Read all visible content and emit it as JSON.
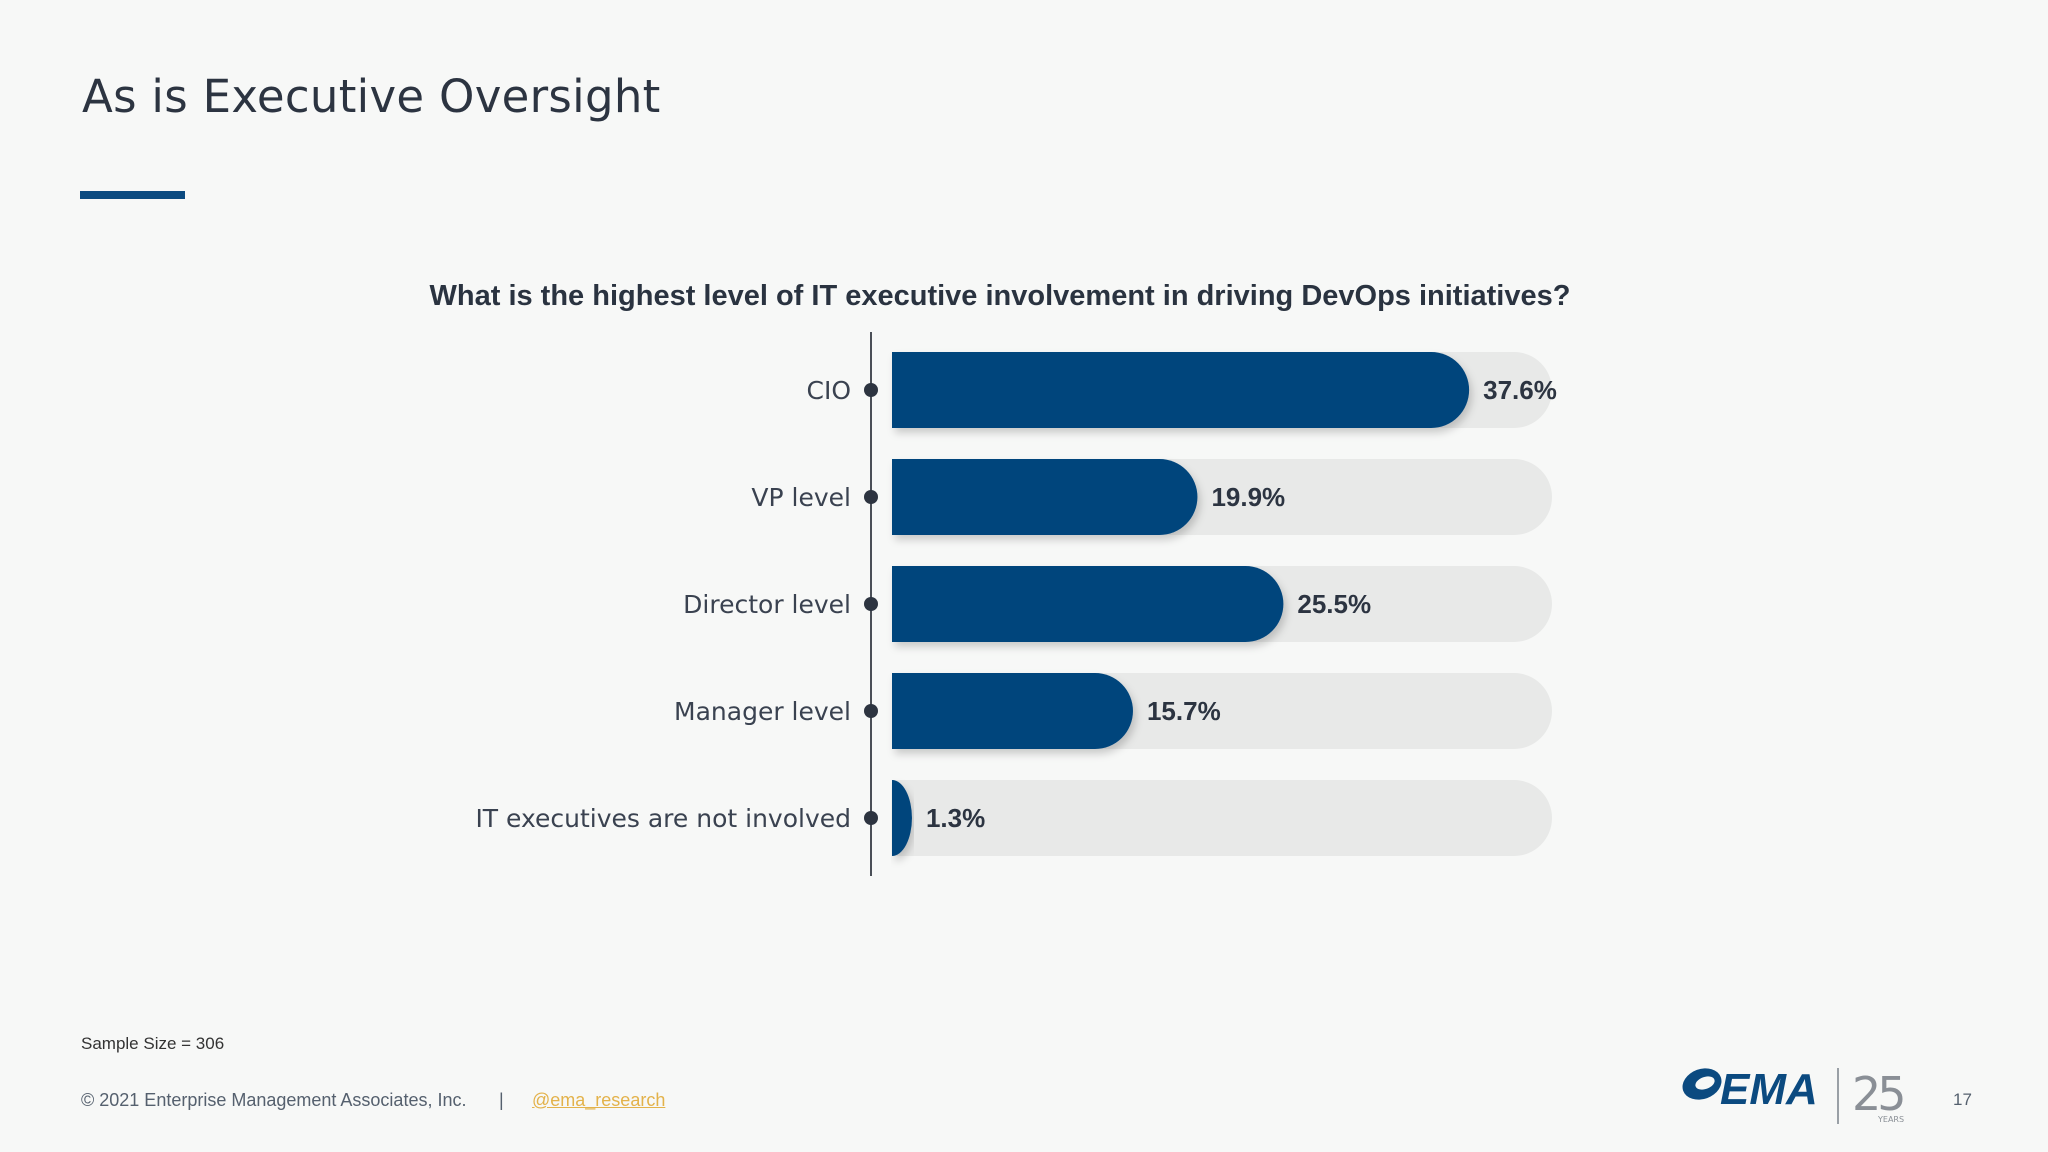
{
  "slide": {
    "title": "As is Executive Oversight",
    "page_number": "17"
  },
  "chart_data": {
    "type": "bar",
    "orientation": "horizontal",
    "title": "What is the highest level of IT executive involvement in driving DevOps initiatives?",
    "categories": [
      "CIO",
      "VP level",
      "Director level",
      "Manager level",
      "IT executives are not involved"
    ],
    "values": [
      37.6,
      19.9,
      25.5,
      15.7,
      1.3
    ],
    "value_labels": [
      "37.6%",
      "19.9%",
      "25.5%",
      "15.7%",
      "1.3%"
    ],
    "unit": "%",
    "xlim": [
      0,
      43
    ],
    "colors": {
      "bar": "#00457c",
      "track": "#e8e9e8",
      "axis": "#4a4f57",
      "dot": "#2d3440"
    },
    "grid": false,
    "legend": "none"
  },
  "footer": {
    "sample_size": "Sample Size = 306",
    "copyright": "© 2021 Enterprise Management Associates, Inc.",
    "separator": "|",
    "handle": "@ema_research"
  },
  "logo": {
    "brand": "EMA",
    "anniversary": "25",
    "anniversary_sub": "YEARS",
    "colors": {
      "brand": "#0b4a80",
      "anniversary": "#8a8f96"
    }
  }
}
